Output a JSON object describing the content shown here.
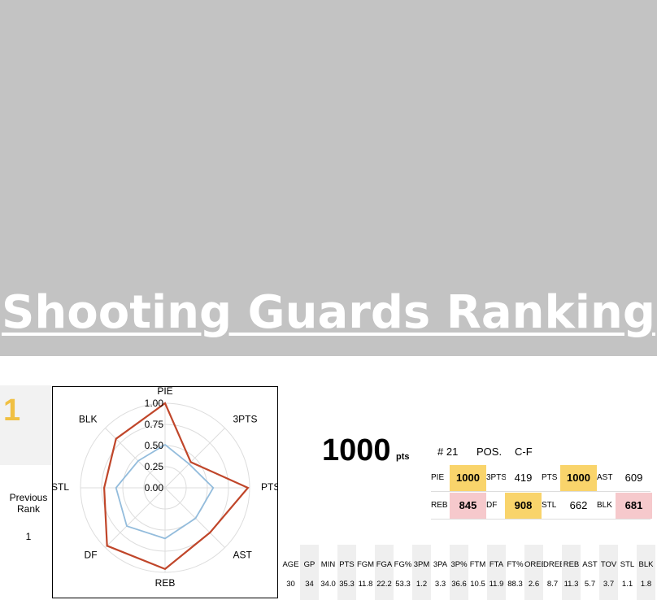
{
  "header": {
    "title": "Shooting Guards Ranking"
  },
  "rank": "1",
  "previous_rank": {
    "label": "Previous Rank",
    "value": "1"
  },
  "radar": {
    "type": "radar",
    "axes": [
      "PIE",
      "3PTS",
      "PTS",
      "AST",
      "REB",
      "DF",
      "STL",
      "BLK"
    ],
    "rlim": [
      0,
      1
    ],
    "rticks": [
      {
        "value": 0,
        "label": "0.00"
      },
      {
        "value": 0.25,
        "label": "0.25"
      },
      {
        "value": 0.5,
        "label": "0.50"
      },
      {
        "value": 0.75,
        "label": "0.75"
      },
      {
        "value": 1,
        "label": "1.00"
      }
    ],
    "grid": true,
    "series": [
      {
        "color": "#c0462a",
        "values": [
          1.0,
          0.43,
          0.98,
          0.75,
          0.96,
          0.97,
          0.72,
          0.82
        ]
      },
      {
        "color": "#93bcdc",
        "values": [
          0.51,
          0.4,
          0.57,
          0.51,
          0.6,
          0.64,
          0.58,
          0.45
        ]
      }
    ]
  },
  "score": {
    "value": "1000",
    "unit": "pts"
  },
  "player": {
    "number": "# 21",
    "pos_label": "POS.",
    "pos": "C-F"
  },
  "ratings": [
    [
      {
        "label": "PIE",
        "value": "1000",
        "highlight": "#f9d46b"
      },
      {
        "label": "3PTS",
        "value": "419"
      },
      {
        "label": "PTS",
        "value": "1000",
        "highlight": "#f9d46b"
      },
      {
        "label": "AST",
        "value": "609"
      }
    ],
    [
      {
        "label": "REB",
        "value": "845",
        "highlight": "#f6c9cc"
      },
      {
        "label": "DF",
        "value": "908",
        "highlight": "#f9d46b"
      },
      {
        "label": "STL",
        "value": "662"
      },
      {
        "label": "BLK",
        "value": "681",
        "highlight": "#f6c9cc"
      }
    ]
  ],
  "stats": {
    "columns": [
      "AGE",
      "GP",
      "MIN",
      "PTS",
      "FGM",
      "FGA",
      "FG%",
      "3PM",
      "3PA",
      "3P%",
      "FTM",
      "FTA",
      "FT%",
      "OREB",
      "DREB",
      "REB",
      "AST",
      "TOV",
      "STL",
      "BLK"
    ],
    "values": [
      "30",
      "34",
      "34.0",
      "35.3",
      "11.8",
      "22.2",
      "53.3",
      "1.2",
      "3.3",
      "36.6",
      "10.5",
      "11.9",
      "88.3",
      "2.6",
      "8.7",
      "11.3",
      "5.7",
      "3.7",
      "1.1",
      "1.8"
    ]
  }
}
